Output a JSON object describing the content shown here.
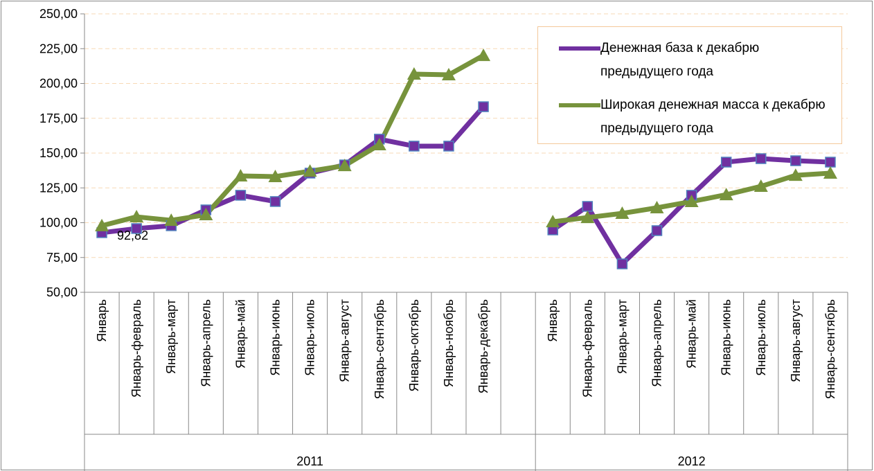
{
  "chart_data": {
    "type": "line",
    "category_groups": [
      {
        "name": "2011",
        "categories": [
          "Январь",
          "Январь-февраль",
          "Январь-март",
          "Январь-апрель",
          "Январь-май",
          "Январь-июнь",
          "Январь-июль",
          "Январь-август",
          "Январь-сентябрь",
          "Январь-октябрь",
          "Январь-ноябрь",
          "Январь-декабрь",
          null
        ]
      },
      {
        "name": "2012",
        "categories": [
          "Январь",
          "Январь-февраль",
          "Январь-март",
          "Январь-апрель",
          "Январь-май",
          "Январь-июнь",
          "Январь-июль",
          "Январь-август",
          "Январь-сентябрь"
        ]
      }
    ],
    "series": [
      {
        "name": "Денежная база к декабрю предыдущего года",
        "color": "#7030a0",
        "marker": "square",
        "marker_edge": "#4f81bd",
        "values": [
          92.82,
          95.8,
          97.8,
          109.2,
          119.7,
          115.2,
          135.6,
          141.5,
          160,
          155,
          155,
          183.3,
          null,
          94.8,
          111.7,
          70.4,
          94.3,
          119.7,
          143.5,
          146,
          144.5,
          143.5
        ],
        "value_labels": [
          "92,82",
          null,
          null,
          null,
          null,
          null,
          null,
          null,
          null,
          null,
          null,
          null,
          null,
          null,
          null,
          null,
          null,
          null,
          null,
          null,
          null,
          null
        ]
      },
      {
        "name": "Широкая денежная масса к декабрю предыдущего года",
        "color": "#77933c",
        "marker": "triangle",
        "values": [
          97.8,
          104.2,
          101.7,
          105.7,
          133.6,
          133.1,
          137,
          141,
          156,
          206.7,
          206.2,
          220.1,
          null,
          100.7,
          103.7,
          106.7,
          110.7,
          115.2,
          120.1,
          126.1,
          134,
          135.6
        ]
      }
    ],
    "ylim": [
      50,
      250
    ],
    "yticks": [
      {
        "value": 50,
        "label": "50,00"
      },
      {
        "value": 75,
        "label": "75,00"
      },
      {
        "value": 100,
        "label": "100,00"
      },
      {
        "value": 125,
        "label": "125,00"
      },
      {
        "value": 150,
        "label": "150,00"
      },
      {
        "value": 175,
        "label": "175,00"
      },
      {
        "value": 200,
        "label": "200,00"
      },
      {
        "value": 225,
        "label": "225,00"
      },
      {
        "value": 250,
        "label": "250,00"
      }
    ],
    "grid": true,
    "legend": "upper right"
  }
}
